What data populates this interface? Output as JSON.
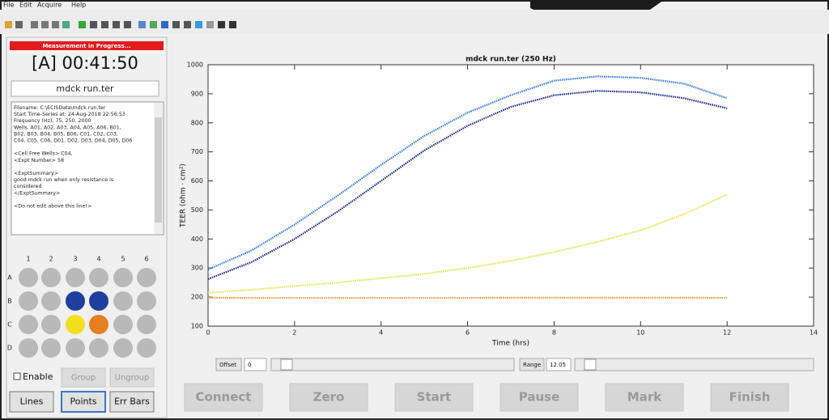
{
  "menu": [
    "File",
    "Edit",
    "Acquire",
    "Help"
  ],
  "status": "Measurement in Progress...",
  "timer": "[A] 00:41:50",
  "filename": "mdck run.ter",
  "notes": [
    [
      "Filename: C:\\ECISData\\mdck run.ter",
      "Start Time-Series at: 24-Aug-2018 22:56:53",
      "Frequency (Hz), 75, 250, 2000",
      "Wells, A01, A02, A03, A04, A05, A06, B01,",
      "B02, B03, B04, B05, B06, C01, C02, C03,",
      "C04, C05, C06, D01, D02, D03, D04, D05, D06"
    ],
    [
      "<Cell Free Wells> C04,",
      "<Expt Number> 58"
    ],
    [
      "<ExptSummary>",
      "good mdck run when only resistance is",
      "considered",
      "</ExptSummary>"
    ],
    [
      "<Do not edit above this line!>"
    ]
  ],
  "wells": {
    "columns": [
      "1",
      "2",
      "3",
      "4",
      "5",
      "6"
    ],
    "rows": [
      "A",
      "B",
      "C",
      "D"
    ],
    "fills": [
      [
        "#b9b9b9",
        "#b9b9b9",
        "#b9b9b9",
        "#b9b9b9",
        "#b9b9b9",
        "#b9b9b9"
      ],
      [
        "#b9b9b9",
        "#b9b9b9",
        "#1f3f9e",
        "#1f3f9e",
        "#b9b9b9",
        "#b9b9b9"
      ],
      [
        "#b9b9b9",
        "#b9b9b9",
        "#f0e020",
        "#e67e22",
        "#b9b9b9",
        "#b9b9b9"
      ],
      [
        "#b9b9b9",
        "#b9b9b9",
        "#b9b9b9",
        "#b9b9b9",
        "#b9b9b9",
        "#b9b9b9"
      ]
    ]
  },
  "enable": "Enable",
  "group_buttons": [
    "Group",
    "Ungroup"
  ],
  "view_buttons": [
    "Lines",
    "Points",
    "Err Bars"
  ],
  "controls": {
    "offset_label": "Offset",
    "offset": "0",
    "range_label": "Range",
    "range": "12.05"
  },
  "actions": [
    "Connect",
    "Zero",
    "Start",
    "Pause",
    "Mark",
    "Finish"
  ],
  "chart_data": {
    "type": "line",
    "title": "mdck run.ter (250 Hz)",
    "x_label": "Time (hrs)",
    "y_label": "TEER (ohm · cm²)",
    "x": [
      0,
      1,
      2,
      3,
      4,
      5,
      6,
      7,
      8,
      9,
      10,
      11,
      12
    ],
    "series": [
      {
        "color": "#3f7fe0",
        "values": [
          295,
          360,
          450,
          550,
          655,
          755,
          835,
          895,
          945,
          960,
          955,
          935,
          885
        ]
      },
      {
        "color": "#24308f",
        "values": [
          262,
          320,
          400,
          495,
          600,
          705,
          790,
          855,
          895,
          910,
          905,
          885,
          850
        ]
      },
      {
        "color": "#e8e45a",
        "values": [
          215,
          225,
          238,
          250,
          265,
          280,
          300,
          325,
          355,
          390,
          430,
          485,
          553
        ]
      },
      {
        "color": "#e0a050",
        "values": [
          198,
          197,
          197,
          197,
          197,
          197,
          197,
          198,
          198,
          198,
          198,
          198,
          197
        ]
      }
    ],
    "xlim": [
      0,
      14
    ],
    "xticks": [
      0,
      2,
      4,
      6,
      8,
      10,
      12,
      14
    ],
    "ylim": [
      100,
      1000
    ],
    "yticks": [
      100,
      200,
      300,
      400,
      500,
      600,
      700,
      800,
      900,
      1000
    ]
  }
}
